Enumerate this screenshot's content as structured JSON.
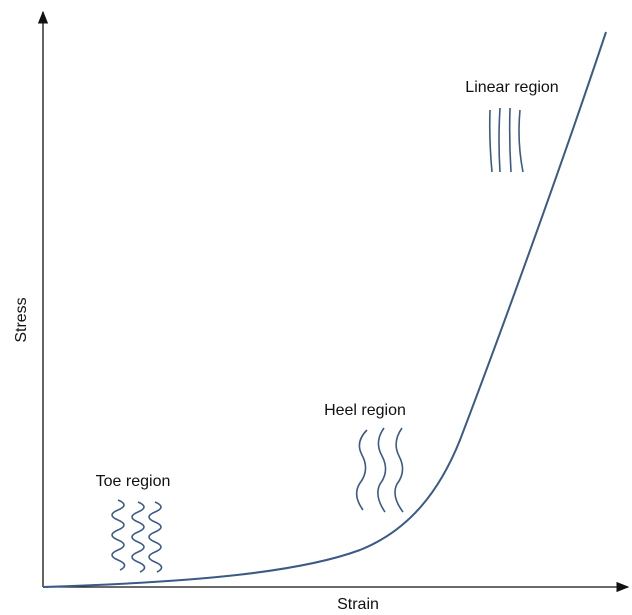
{
  "axes": {
    "y_label": "Stress",
    "x_label": "Strain"
  },
  "regions": [
    {
      "label": "Toe region"
    },
    {
      "label": "Heel region"
    },
    {
      "label": "Linear region"
    }
  ]
}
